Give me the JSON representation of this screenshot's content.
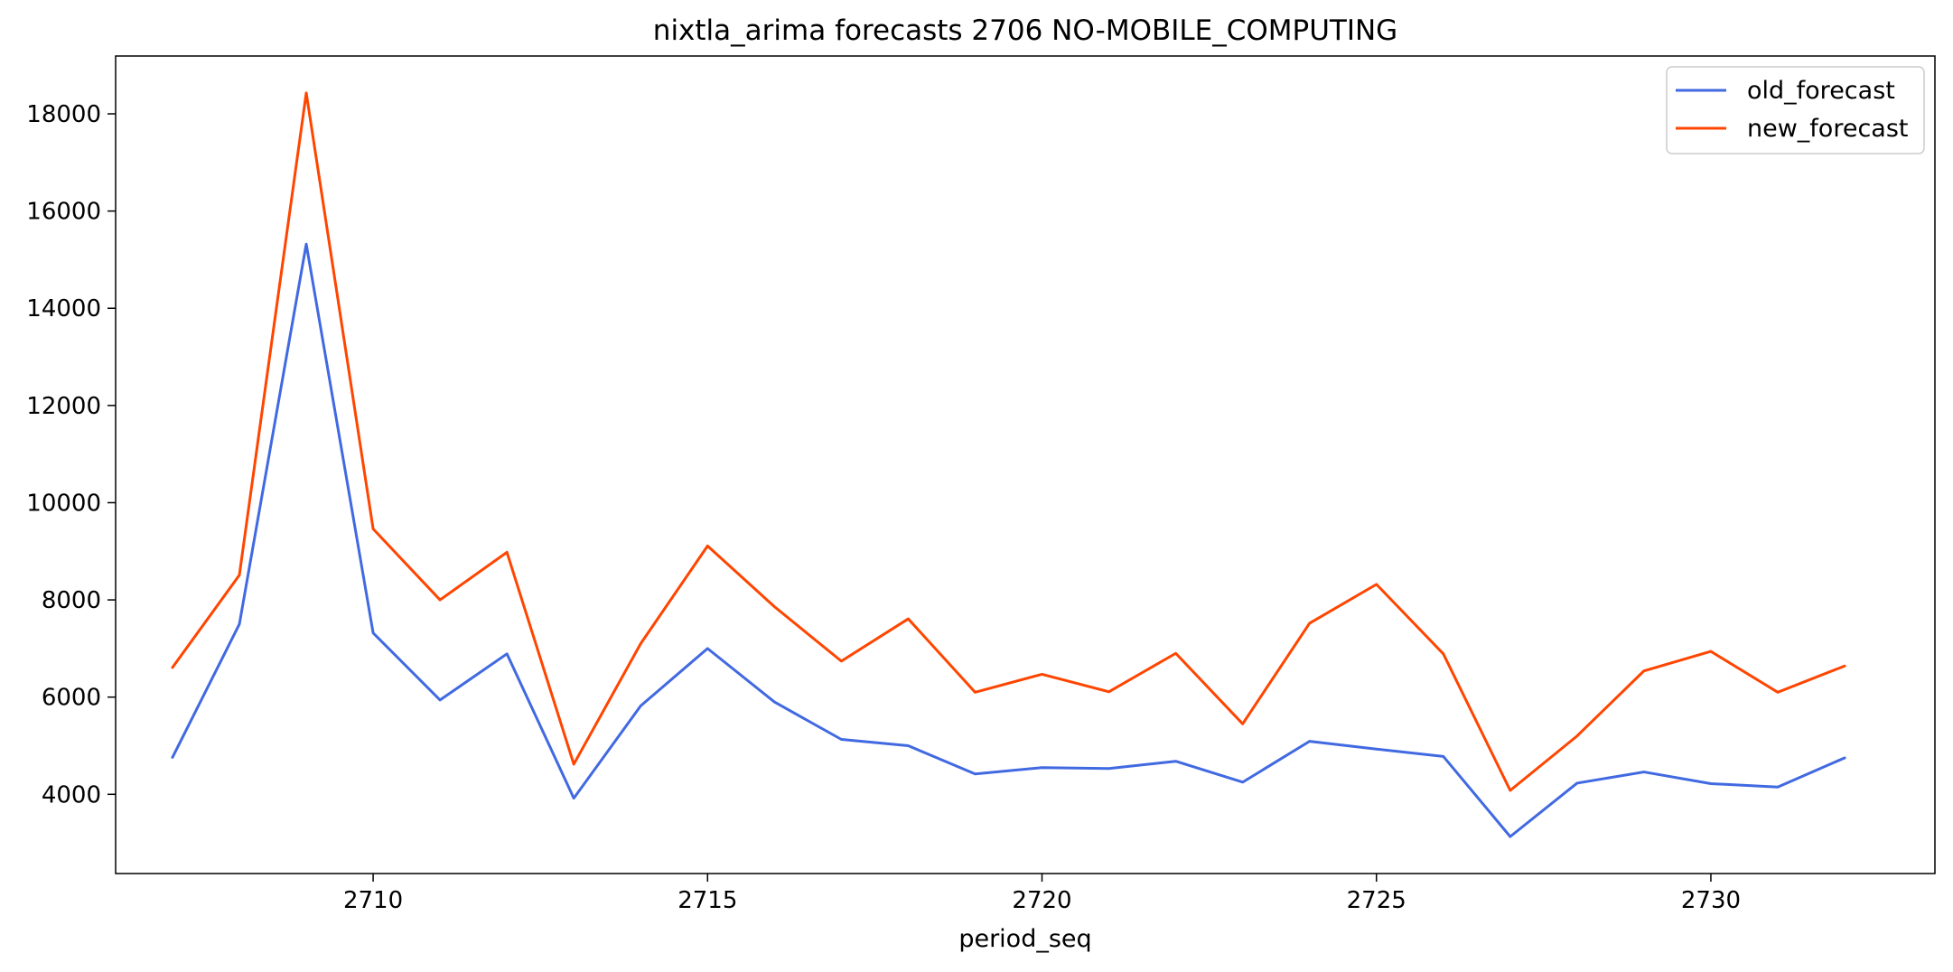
{
  "chart_data": {
    "type": "line",
    "title": "nixtla_arima forecasts 2706 NO-MOBILE_COMPUTING",
    "xlabel": "period_seq",
    "ylabel": "",
    "xlim": [
      2706.15,
      2733.35
    ],
    "ylim": [
      2370,
      19190
    ],
    "x_ticks": [
      2710,
      2715,
      2720,
      2725,
      2730
    ],
    "y_ticks": [
      4000,
      6000,
      8000,
      10000,
      12000,
      14000,
      16000,
      18000
    ],
    "grid": false,
    "legend_position": "top-right",
    "x": [
      2707,
      2708,
      2709,
      2710,
      2711,
      2712,
      2713,
      2714,
      2715,
      2716,
      2717,
      2718,
      2719,
      2720,
      2721,
      2722,
      2723,
      2724,
      2725,
      2726,
      2727,
      2728,
      2729,
      2730,
      2731,
      2732
    ],
    "series": [
      {
        "name": "old_forecast",
        "color": "#4169e1",
        "values": [
          4760,
          7500,
          15320,
          7320,
          5940,
          6890,
          3920,
          5820,
          7000,
          5900,
          5130,
          5000,
          4420,
          4550,
          4530,
          4680,
          4250,
          5090,
          4930,
          4780,
          3130,
          4230,
          4460,
          4220,
          4150,
          4750
        ]
      },
      {
        "name": "new_forecast",
        "color": "#ff4500",
        "values": [
          6610,
          8510,
          18430,
          9460,
          8000,
          8980,
          4620,
          7100,
          9110,
          7860,
          6740,
          7610,
          6100,
          6470,
          6110,
          6900,
          5450,
          7520,
          8320,
          6890,
          4080,
          5200,
          6540,
          6940,
          6100,
          6640
        ]
      }
    ]
  }
}
